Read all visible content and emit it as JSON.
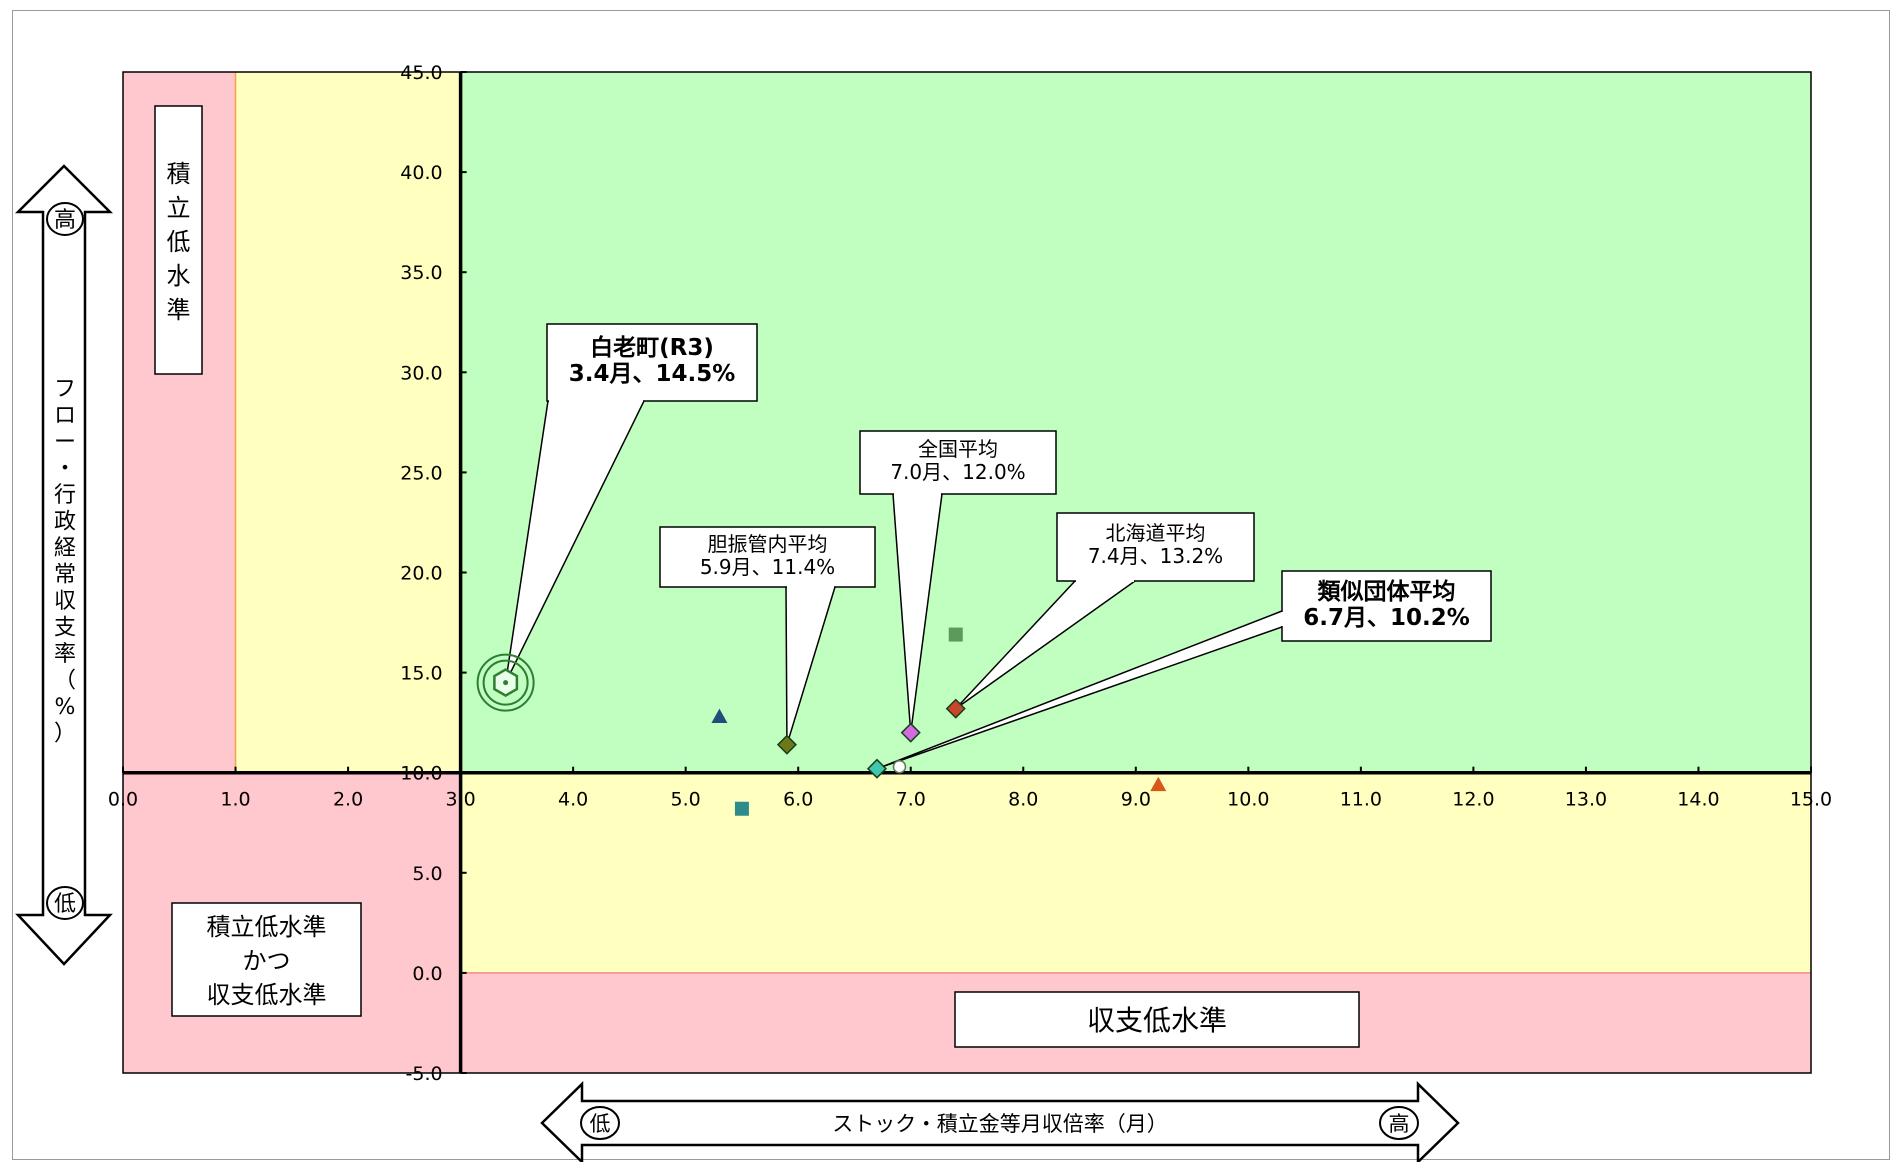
{
  "chart_data": {
    "type": "scatter",
    "xlabel": "ストック・積立金等月収倍率（月）",
    "ylabel": "フロー・行政経常収支率（%）",
    "xlim": [
      0,
      15
    ],
    "ylim": [
      -5,
      45
    ],
    "x_ticks": [
      "0.0",
      "1.0",
      "2.0",
      "3.0",
      "4.0",
      "5.0",
      "6.0",
      "7.0",
      "8.0",
      "9.0",
      "10.0",
      "11.0",
      "12.0",
      "13.0",
      "14.0",
      "15.0"
    ],
    "y_ticks": [
      "-5.0",
      "0.0",
      "5.0",
      "10.0",
      "15.0",
      "20.0",
      "25.0",
      "30.0",
      "35.0",
      "40.0",
      "45.0"
    ],
    "axis_cross": {
      "x": 3.0,
      "y": 10.0
    },
    "regions": [
      {
        "name": "stock-low-zone",
        "x": [
          0,
          1
        ],
        "y": [
          -5,
          45
        ],
        "color": "#ffc7ce"
      },
      {
        "name": "stock-mid-zone",
        "x": [
          1,
          3
        ],
        "y": [
          10,
          45
        ],
        "color": "#ffffc0"
      },
      {
        "name": "stock-mid-lower-zone",
        "x": [
          1,
          3
        ],
        "y": [
          -5,
          10
        ],
        "color": "#ffc7ce"
      },
      {
        "name": "good-zone",
        "x": [
          3,
          15
        ],
        "y": [
          10,
          45
        ],
        "color": "#c0ffc0"
      },
      {
        "name": "flow-mid-zone",
        "x": [
          3,
          15
        ],
        "y": [
          0,
          10
        ],
        "color": "#ffffc0"
      },
      {
        "name": "flow-low-zone",
        "x": [
          3,
          15
        ],
        "y": [
          -5,
          0
        ],
        "color": "#ffc7ce"
      }
    ],
    "series": [
      {
        "name": "白老町",
        "x": 3.4,
        "y": 14.5,
        "marker": "hexagon-target",
        "color": "#2e7d32"
      },
      {
        "x": 5.3,
        "y": 12.8,
        "marker": "triangle",
        "color": "#1f4e79"
      },
      {
        "x": 5.5,
        "y": 8.2,
        "marker": "square",
        "color": "#2e8b8b"
      },
      {
        "name": "胆振管内平均",
        "x": 5.9,
        "y": 11.4,
        "marker": "diamond",
        "color": "#6b7a16"
      },
      {
        "name": "類似団体平均",
        "x": 6.7,
        "y": 10.2,
        "marker": "diamond",
        "color": "#3fc7b0"
      },
      {
        "x": 6.9,
        "y": 10.3,
        "marker": "circle-open",
        "color": "#5a7a5a"
      },
      {
        "name": "全国平均",
        "x": 7.0,
        "y": 12.0,
        "marker": "diamond",
        "color": "#d36ae0"
      },
      {
        "name": "北海道平均",
        "x": 7.4,
        "y": 13.2,
        "marker": "diamond",
        "color": "#c8462a"
      },
      {
        "x": 7.4,
        "y": 16.9,
        "marker": "square",
        "color": "#5c9a5c"
      },
      {
        "x": 9.2,
        "y": 9.4,
        "marker": "triangle",
        "color": "#d8581a"
      }
    ],
    "callouts": [
      {
        "line1": "白老町(R3)",
        "line2": "3.4月、14.5%",
        "bold": true
      },
      {
        "line1": "胆振管内平均",
        "line2": "5.9月、11.4%",
        "bold": false
      },
      {
        "line1": "全国平均",
        "line2": "7.0月、12.0%",
        "bold": false
      },
      {
        "line1": "北海道平均",
        "line2": "7.4月、13.2%",
        "bold": false
      },
      {
        "line1": "類似団体平均",
        "line2": "6.7月、10.2%",
        "bold": true
      }
    ],
    "zone_labels": {
      "stock_low": [
        "積",
        "立",
        "低",
        "水",
        "準"
      ],
      "both_low": [
        "積立低水準",
        "かつ",
        "収支低水準"
      ],
      "flow_low": "収支低水準"
    },
    "arrow_labels": {
      "high": "高",
      "low": "低"
    },
    "y_axis_label_chars": [
      "フ",
      "ロ",
      "ー",
      "・",
      "行",
      "政",
      "経",
      "常",
      "収",
      "支",
      "率",
      "（",
      "%",
      "）"
    ]
  }
}
